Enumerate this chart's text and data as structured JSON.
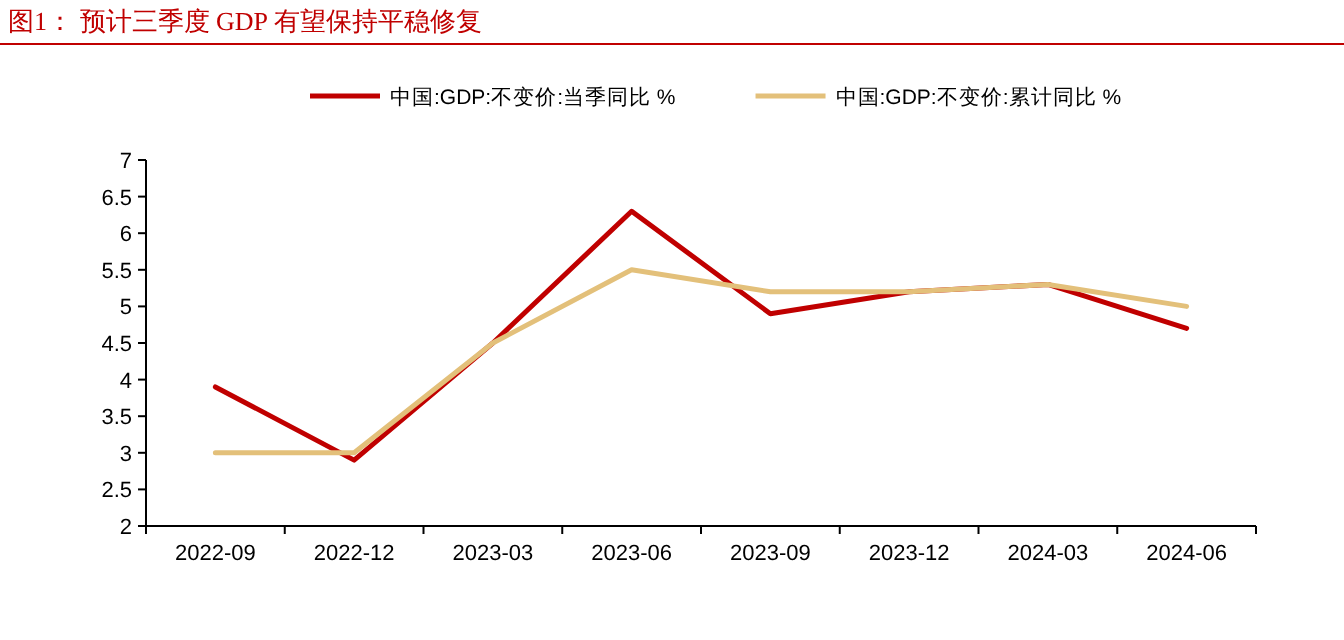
{
  "chart_data": {
    "type": "line",
    "title": "图1：  预计三季度 GDP 有望保持平稳修复",
    "categories": [
      "2022-09",
      "2022-12",
      "2023-03",
      "2023-06",
      "2023-09",
      "2023-12",
      "2024-03",
      "2024-06"
    ],
    "series": [
      {
        "name": "中国:GDP:不变价:当季同比 %",
        "color": "#c00000",
        "values": [
          3.9,
          2.9,
          4.5,
          6.3,
          4.9,
          5.2,
          5.3,
          4.7
        ]
      },
      {
        "name": "中国:GDP:不变价:累计同比 %",
        "color": "#e3c07a",
        "values": [
          3.0,
          3.0,
          4.5,
          5.5,
          5.2,
          5.2,
          5.3,
          5.0
        ]
      }
    ],
    "ylim": [
      2,
      7
    ],
    "yticks": [
      2,
      2.5,
      3,
      3.5,
      4,
      4.5,
      5,
      5.5,
      6,
      6.5,
      7
    ],
    "legend": "top"
  }
}
